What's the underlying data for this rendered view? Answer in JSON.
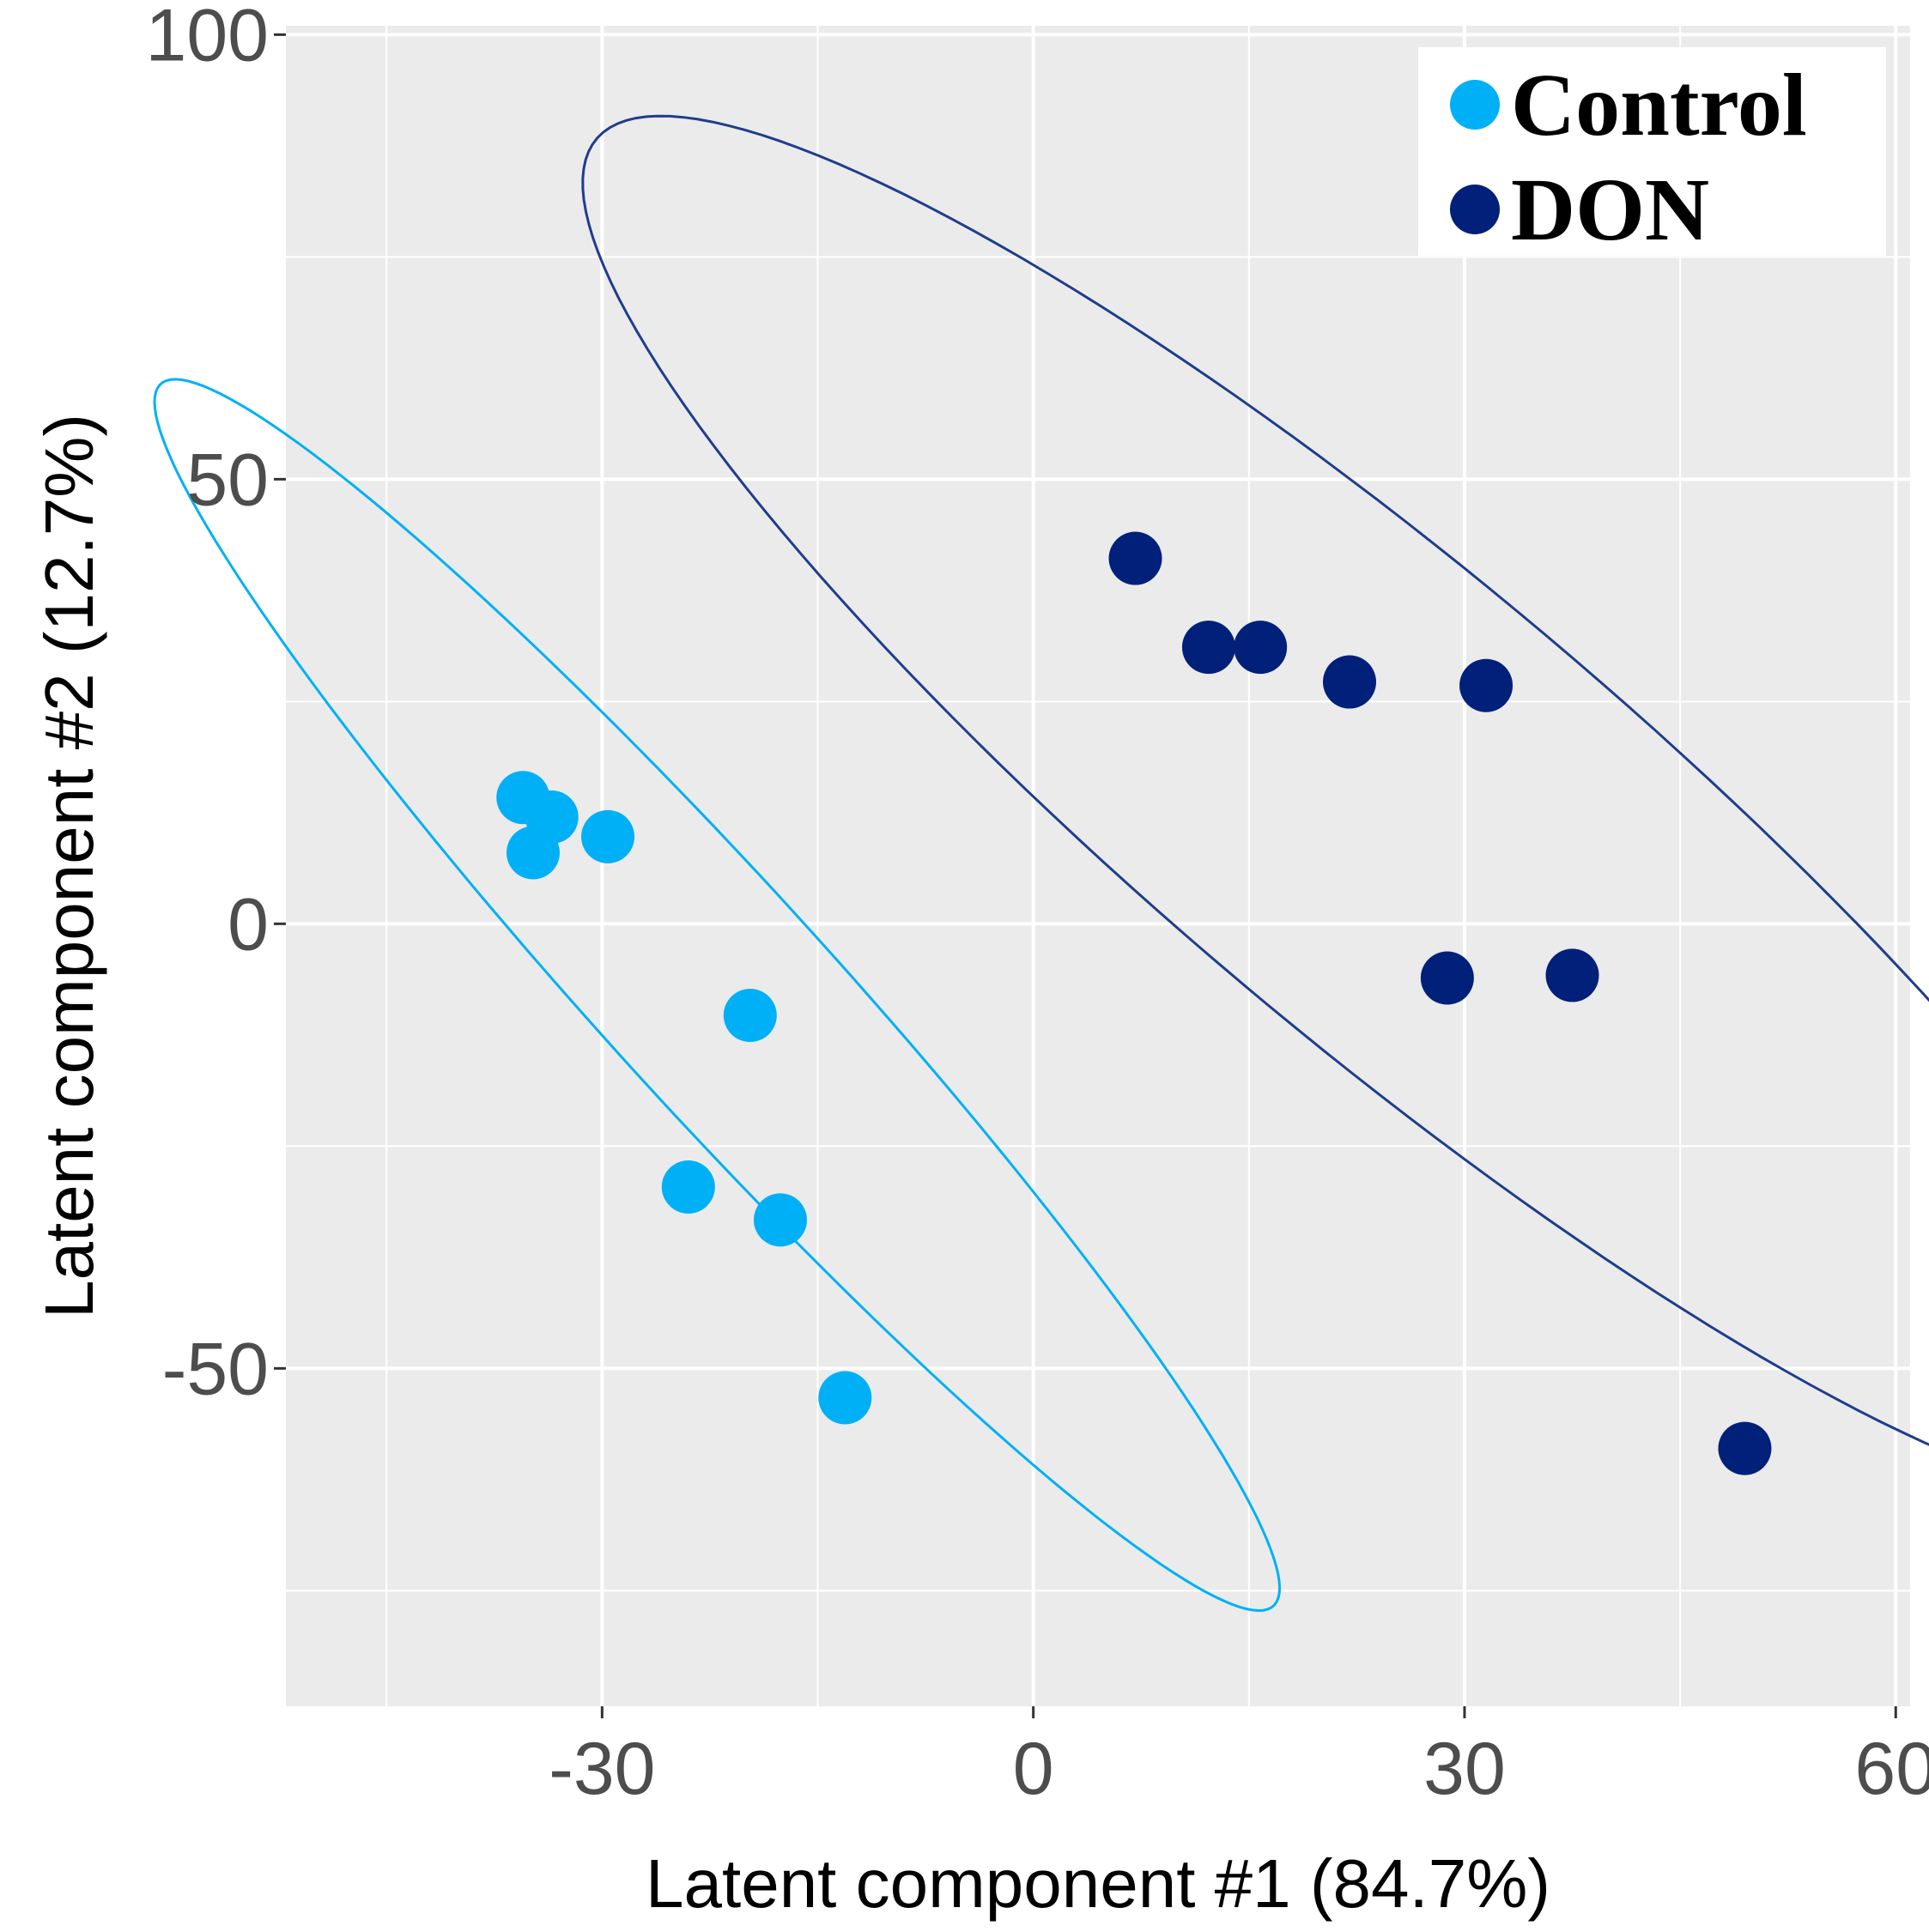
{
  "chart_data": {
    "type": "scatter",
    "title": "",
    "xlabel": "Latent component #1 (84.7%)",
    "ylabel": "Latent component #2 (12.7%)",
    "xlim": [
      -52,
      61
    ],
    "ylim": [
      -88,
      101
    ],
    "xticks": [
      -30,
      0,
      30,
      60
    ],
    "yticks": [
      -50,
      0,
      50,
      100
    ],
    "x_tick_labels": [
      "-30",
      "0",
      "30",
      "60"
    ],
    "y_tick_labels": [
      "-50",
      "0",
      "50",
      "100"
    ],
    "grid": true,
    "legend_position": "top-right",
    "series": [
      {
        "name": "Control",
        "color": "#00b0f6",
        "points": [
          {
            "x": -35.5,
            "y": 14.2
          },
          {
            "x": -33.5,
            "y": 12.0
          },
          {
            "x": -34.8,
            "y": 8.0
          },
          {
            "x": -29.6,
            "y": 9.8
          },
          {
            "x": -19.7,
            "y": -10.3
          },
          {
            "x": -24.0,
            "y": -29.6
          },
          {
            "x": -17.6,
            "y": -33.3
          },
          {
            "x": -13.1,
            "y": -53.3
          }
        ],
        "ellipse": {
          "cx": -22,
          "cy": -8,
          "rx": 79,
          "ry": 9.2,
          "angle_deg": -61
        }
      },
      {
        "name": "DON",
        "color": "#00207a",
        "points": [
          {
            "x": 7.1,
            "y": 41.1
          },
          {
            "x": 12.2,
            "y": 31.1
          },
          {
            "x": 15.8,
            "y": 31.1
          },
          {
            "x": 22.0,
            "y": 27.2
          },
          {
            "x": 31.5,
            "y": 26.8
          },
          {
            "x": 28.8,
            "y": -6.1
          },
          {
            "x": 37.5,
            "y": -5.8
          },
          {
            "x": 49.5,
            "y": -59.0
          }
        ],
        "ellipse": {
          "cx": 25,
          "cy": 13,
          "rx": 94,
          "ry": 20,
          "angle_deg": -55
        },
        "ellipse_color": "#1f3d8c"
      }
    ]
  }
}
